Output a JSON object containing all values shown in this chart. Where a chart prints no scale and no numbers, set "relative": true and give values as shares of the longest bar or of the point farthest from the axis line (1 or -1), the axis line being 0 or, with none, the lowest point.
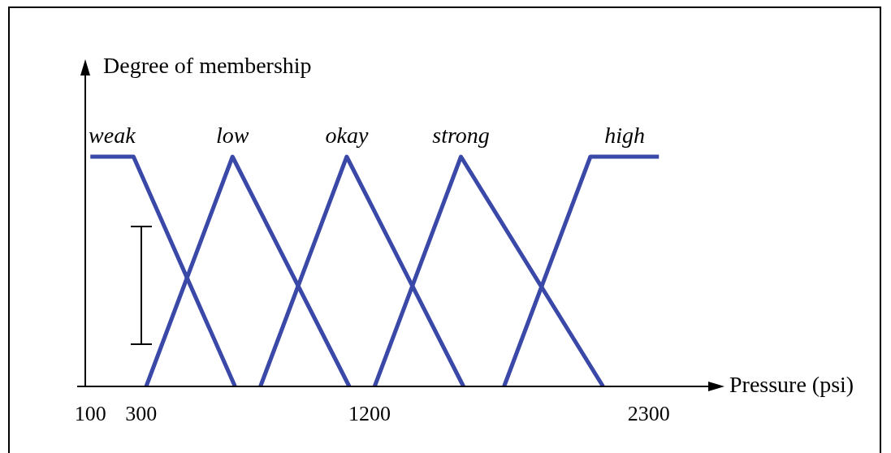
{
  "chart_data": {
    "type": "line",
    "xlabel": "Pressure (psi)",
    "ylabel": "Degree of membership",
    "relative": true,
    "marker": "none",
    "legend": false,
    "grid": false,
    "xlim": [
      80,
      2560
    ],
    "xticks": [
      100,
      300,
      1200,
      2300
    ],
    "series": [
      {
        "name": "weak",
        "color": "#3a48a8",
        "x": [
          100,
          270,
          670
        ],
        "values": [
          1,
          1,
          0
        ]
      },
      {
        "name": "low",
        "color": "#3a48a8",
        "x": [
          320,
          660,
          1120
        ],
        "values": [
          0,
          1,
          0
        ]
      },
      {
        "name": "okay",
        "color": "#3a48a8",
        "x": [
          770,
          1110,
          1570
        ],
        "values": [
          0,
          1,
          0
        ]
      },
      {
        "name": "strong",
        "color": "#3a48a8",
        "x": [
          1220,
          1560,
          2120
        ],
        "values": [
          0,
          1,
          0
        ]
      },
      {
        "name": "high",
        "color": "#3a48a8",
        "x": [
          1730,
          2070,
          2340
        ],
        "values": [
          0,
          1,
          1
        ]
      }
    ]
  }
}
